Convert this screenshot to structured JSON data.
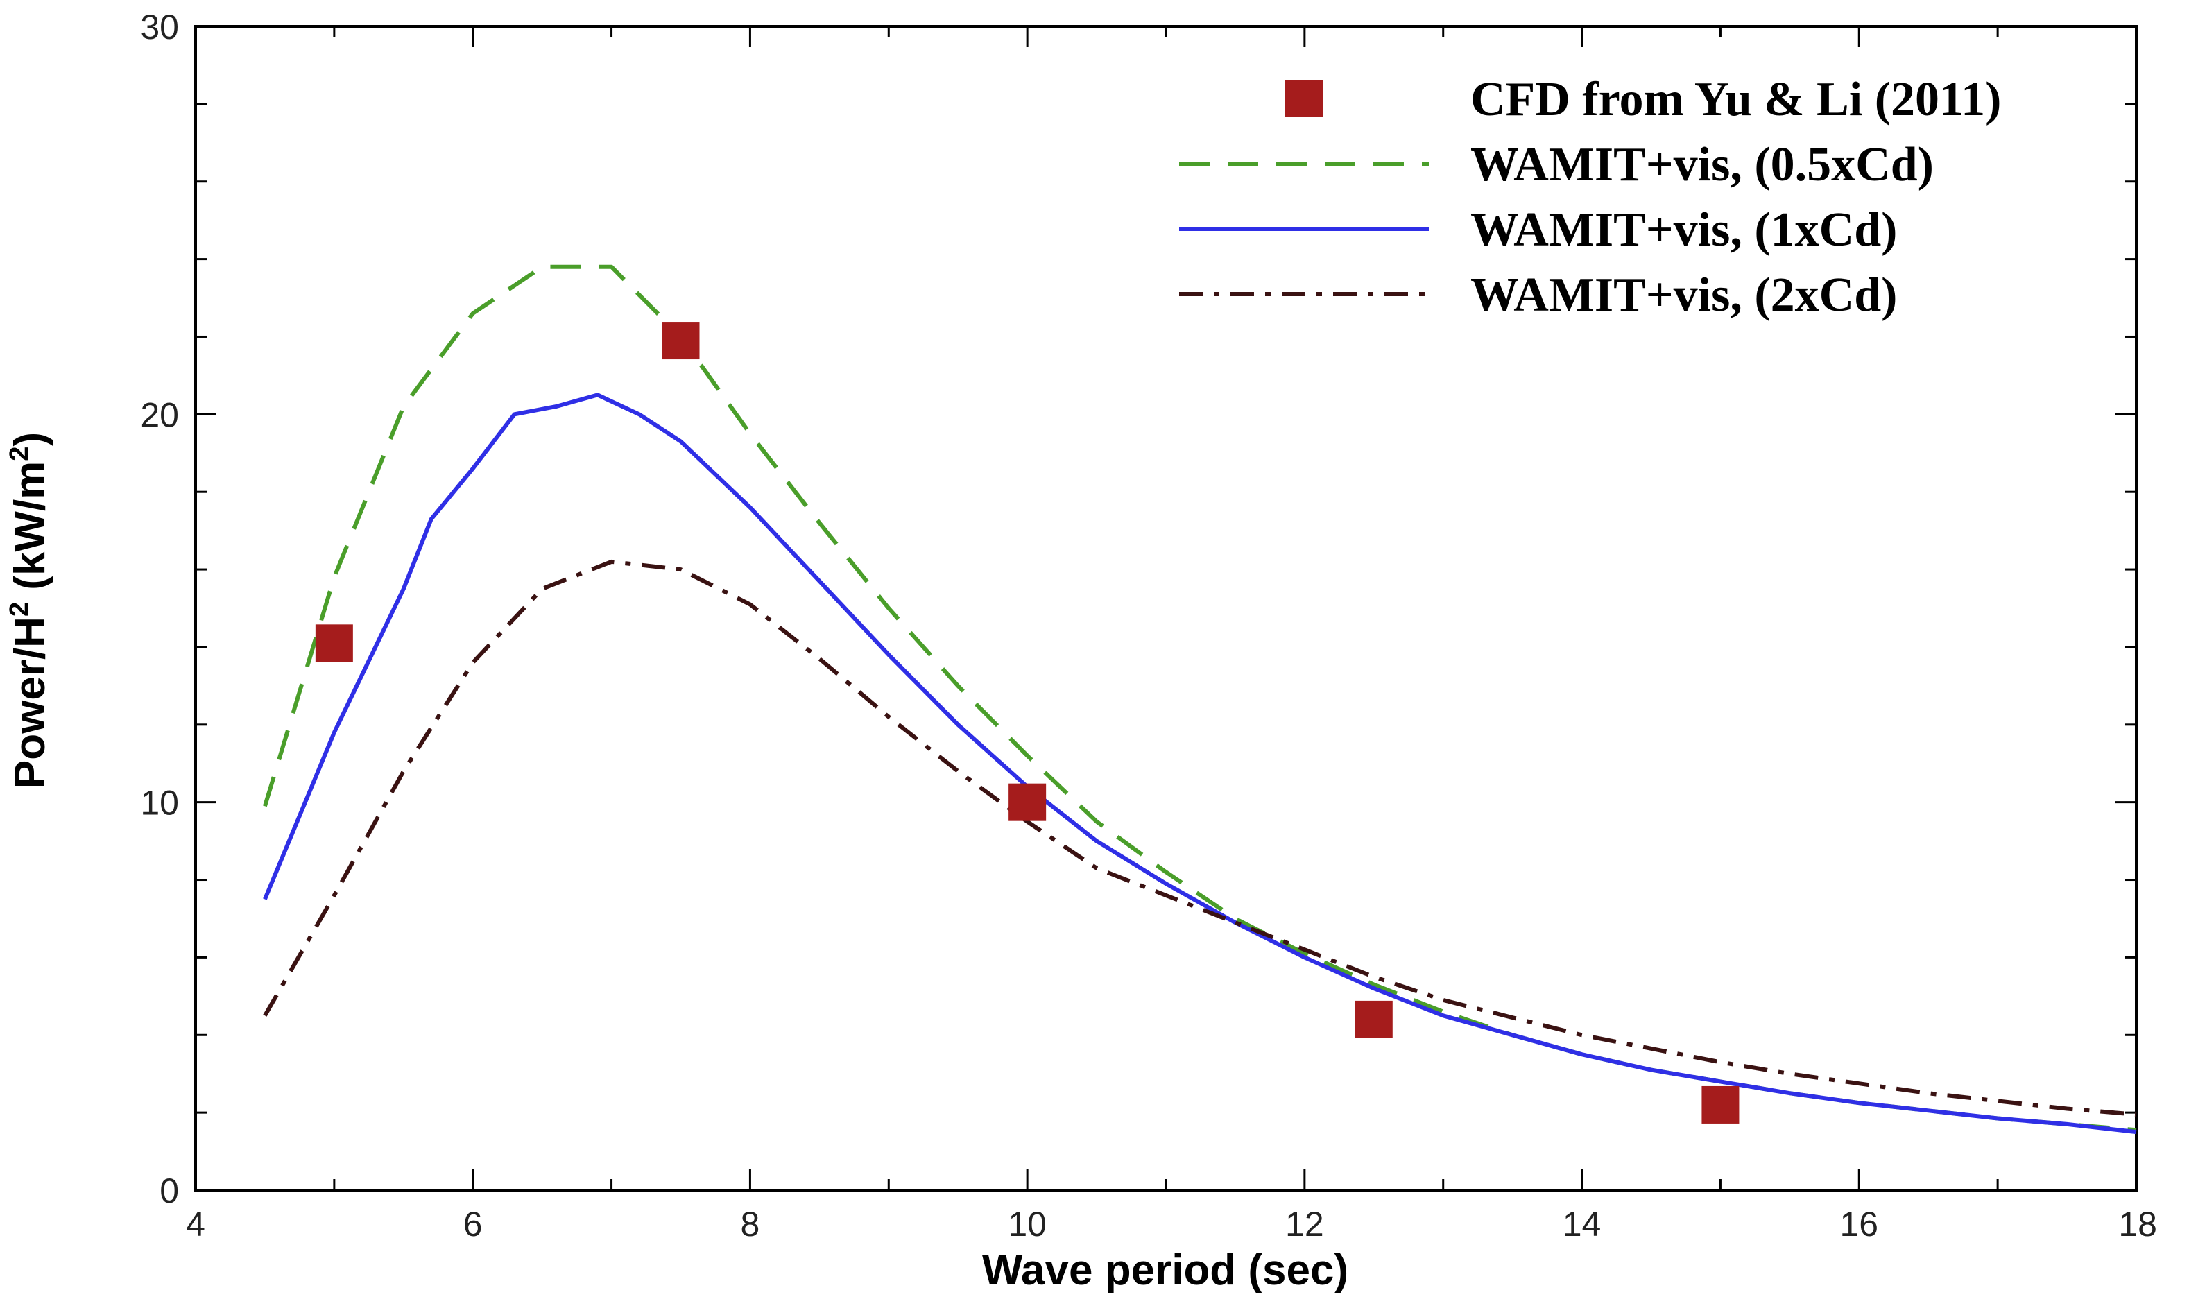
{
  "chart_data": {
    "type": "line",
    "title": "",
    "xlabel": "Wave period (sec)",
    "ylabel_main": "Power/H",
    "ylabel_sup": "2",
    "ylabel_unit": " (kW/m",
    "ylabel_unit_sup": "2",
    "ylabel_close": ")",
    "xlim": [
      4,
      18
    ],
    "ylim": [
      0,
      30
    ],
    "xticks_major": [
      4,
      6,
      8,
      10,
      12,
      14,
      16,
      18
    ],
    "yticks_major": [
      0,
      10,
      20,
      30
    ],
    "grid": false,
    "legend_position": "top-right",
    "series": [
      {
        "name": "CFD from Yu & Li (2011)",
        "kind": "marker",
        "color": "#a51c1c",
        "x": [
          5,
          7.5,
          10,
          12.5,
          15
        ],
        "y": [
          14.1,
          21.9,
          10,
          4.4,
          2.2
        ]
      },
      {
        "name": "WAMIT+vis, (0.5xCd)",
        "kind": "dashed",
        "color": "#4a9e2a",
        "x": [
          4.5,
          5.0,
          5.5,
          6.0,
          6.5,
          7.0,
          7.5,
          8.0,
          8.5,
          9.0,
          9.5,
          10.0,
          10.5,
          11.0,
          11.5,
          12.0,
          12.5,
          13.0,
          13.5,
          14.0,
          14.5,
          15.0,
          15.5,
          16.0,
          16.5,
          17.0,
          17.5,
          18.0
        ],
        "y": [
          9.9,
          15.8,
          20.2,
          22.6,
          23.8,
          23.8,
          22.0,
          19.5,
          17.2,
          15.0,
          13.0,
          11.2,
          9.5,
          8.2,
          7.0,
          6.1,
          5.3,
          4.6,
          4.0,
          3.5,
          3.1,
          2.8,
          2.5,
          2.25,
          2.05,
          1.85,
          1.7,
          1.55
        ]
      },
      {
        "name": "WAMIT+vis, (1xCd)",
        "kind": "solid",
        "color": "#2f2fe6",
        "x": [
          4.5,
          5.0,
          5.5,
          5.7,
          6.0,
          6.3,
          6.6,
          6.9,
          7.2,
          7.5,
          8.0,
          8.5,
          9.0,
          9.5,
          10.0,
          10.5,
          11.0,
          11.5,
          12.0,
          12.5,
          13.0,
          13.5,
          14.0,
          14.5,
          15.0,
          15.5,
          16.0,
          16.5,
          17.0,
          17.5,
          18.0
        ],
        "y": [
          7.5,
          11.8,
          15.5,
          17.3,
          18.6,
          20.0,
          20.2,
          20.5,
          20.0,
          19.3,
          17.6,
          15.7,
          13.8,
          12.0,
          10.4,
          9.0,
          7.9,
          6.9,
          6.0,
          5.2,
          4.5,
          4.0,
          3.5,
          3.1,
          2.8,
          2.5,
          2.25,
          2.05,
          1.85,
          1.7,
          1.5
        ]
      },
      {
        "name": "WAMIT+vis, (2xCd)",
        "kind": "dashdot",
        "color": "#3a1212",
        "x": [
          4.5,
          5.0,
          5.5,
          6.0,
          6.5,
          7.0,
          7.5,
          8.0,
          8.5,
          9.0,
          9.5,
          10.0,
          10.5,
          11.0,
          11.5,
          12.0,
          12.5,
          13.0,
          13.5,
          14.0,
          14.5,
          15.0,
          15.5,
          16.0,
          16.5,
          17.0,
          17.5,
          18.0
        ],
        "y": [
          4.5,
          7.6,
          10.8,
          13.6,
          15.5,
          16.2,
          16.0,
          15.1,
          13.7,
          12.2,
          10.8,
          9.5,
          8.3,
          7.6,
          6.9,
          6.2,
          5.5,
          4.9,
          4.45,
          4.0,
          3.65,
          3.3,
          3.0,
          2.75,
          2.5,
          2.3,
          2.1,
          1.95
        ]
      }
    ]
  }
}
